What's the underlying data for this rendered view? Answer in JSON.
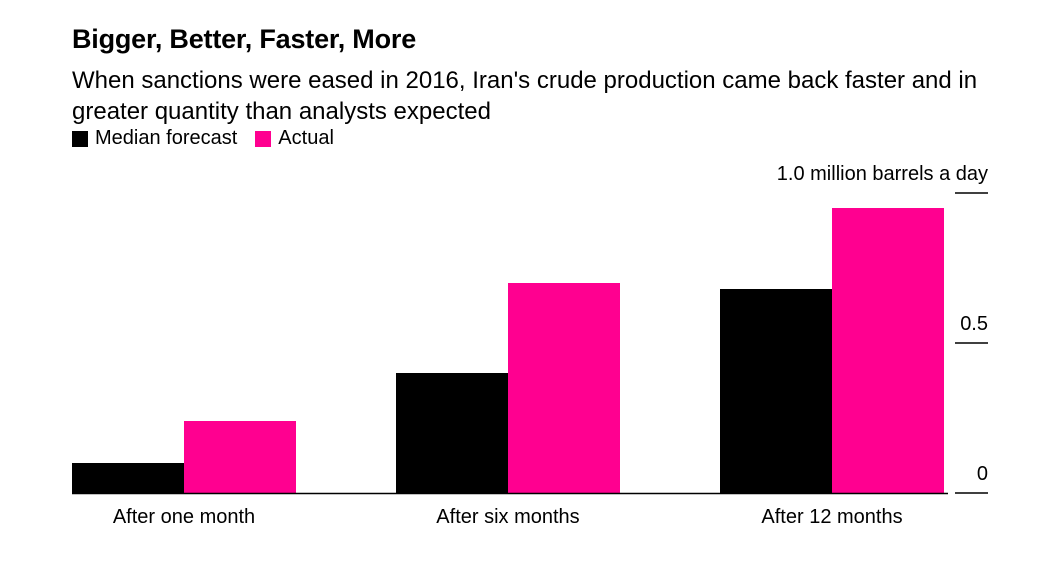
{
  "title": "Bigger, Better, Faster, More",
  "subtitle": "When sanctions were eased in 2016, Iran's crude production came back faster and in greater quantity than analysts expected",
  "legend": [
    {
      "label": "Median forecast",
      "color": "#000000"
    },
    {
      "label": "Actual",
      "color": "#ff0090"
    }
  ],
  "chart_data": {
    "type": "bar",
    "title": "Bigger, Better, Faster, More",
    "subtitle": "When sanctions were eased in 2016, Iran's crude production came back faster and in greater quantity than analysts expected",
    "categories": [
      "After one month",
      "After six months",
      "After 12 months"
    ],
    "series": [
      {
        "name": "Median forecast",
        "color": "#000000",
        "values": [
          0.1,
          0.4,
          0.68
        ]
      },
      {
        "name": "Actual",
        "color": "#ff0090",
        "values": [
          0.24,
          0.7,
          0.95
        ]
      }
    ],
    "ylim": [
      0,
      1.0
    ],
    "yticks": [
      {
        "value": 0,
        "label": "0"
      },
      {
        "value": 0.5,
        "label": "0.5"
      },
      {
        "value": 1.0,
        "label": "1.0 million barrels a day"
      }
    ],
    "xlabel": "",
    "ylabel": "",
    "y_axis_side": "right",
    "grid": false,
    "legend_position": "top-left"
  }
}
